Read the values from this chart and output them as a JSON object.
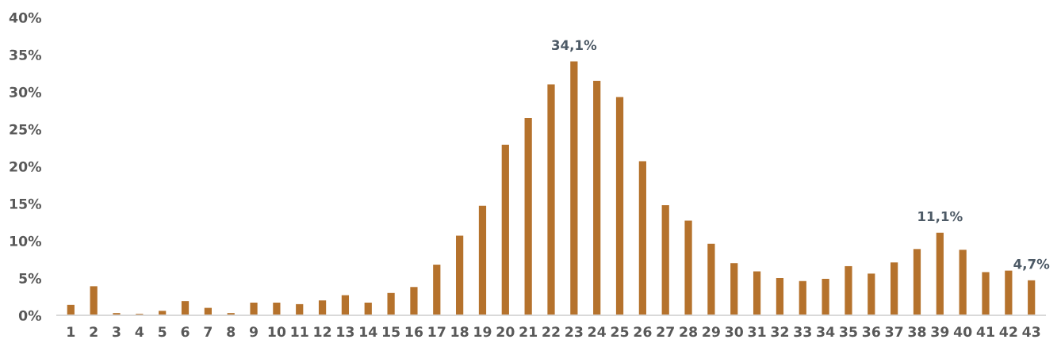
{
  "chart_data": {
    "type": "bar",
    "categories": [
      "1",
      "2",
      "3",
      "4",
      "5",
      "6",
      "7",
      "8",
      "9",
      "10",
      "11",
      "12",
      "13",
      "14",
      "15",
      "16",
      "17",
      "18",
      "19",
      "20",
      "21",
      "22",
      "23",
      "24",
      "25",
      "26",
      "27",
      "28",
      "29",
      "30",
      "31",
      "32",
      "33",
      "34",
      "35",
      "36",
      "37",
      "38",
      "39",
      "40",
      "41",
      "42",
      "43"
    ],
    "values": [
      1.4,
      3.9,
      0.3,
      0.2,
      0.6,
      1.9,
      1.0,
      0.3,
      1.7,
      1.7,
      1.5,
      2.0,
      2.7,
      1.7,
      3.0,
      3.8,
      6.8,
      10.7,
      14.7,
      22.9,
      26.5,
      31.0,
      34.1,
      31.5,
      29.3,
      20.7,
      14.8,
      12.7,
      9.6,
      7.0,
      5.9,
      5.0,
      4.6,
      4.9,
      6.6,
      5.6,
      7.1,
      8.9,
      11.1,
      8.8,
      5.8,
      6.0,
      4.7
    ],
    "value_labels": [
      null,
      null,
      null,
      null,
      null,
      null,
      null,
      null,
      null,
      null,
      null,
      null,
      null,
      null,
      null,
      null,
      null,
      null,
      null,
      null,
      null,
      null,
      "34,1%",
      null,
      null,
      null,
      null,
      null,
      null,
      null,
      null,
      null,
      null,
      null,
      null,
      null,
      null,
      null,
      "11,1%",
      null,
      null,
      null,
      "4,7%"
    ],
    "color": "#b5722c",
    "ylim": [
      0,
      40
    ],
    "yticks": [
      {
        "value": 0,
        "label": "0%"
      },
      {
        "value": 5,
        "label": "5%"
      },
      {
        "value": 10,
        "label": "10%"
      },
      {
        "value": 15,
        "label": "15%"
      },
      {
        "value": 20,
        "label": "20%"
      },
      {
        "value": 25,
        "label": "25%"
      },
      {
        "value": 30,
        "label": "30%"
      },
      {
        "value": 35,
        "label": "35%"
      },
      {
        "value": 40,
        "label": "40%"
      }
    ],
    "grid": false,
    "legend": false
  }
}
